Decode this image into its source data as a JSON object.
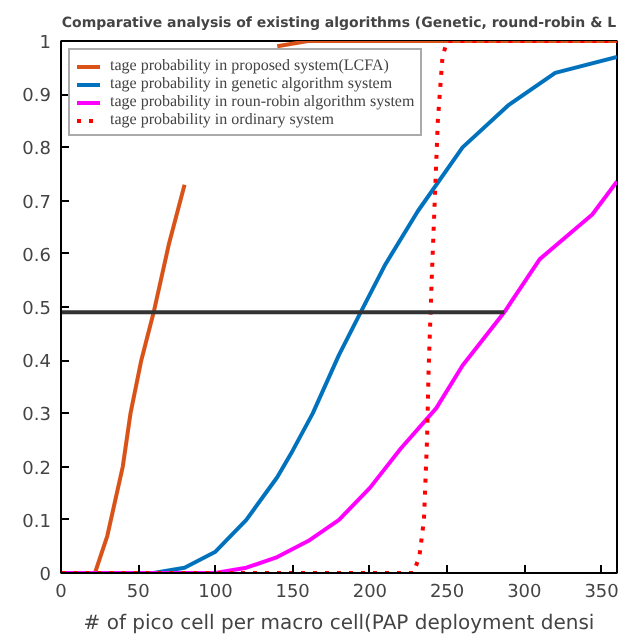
{
  "chart_data": {
    "type": "line",
    "title": "Comparative analysis of existing algorithms (Genetic, round-robin & L",
    "xlabel": "# of pico cell per macro cell(PAP deployment densi",
    "xlim": [
      0,
      360
    ],
    "xticks": [
      0,
      50,
      100,
      150,
      200,
      250,
      300,
      350
    ],
    "ylim": [
      0,
      1
    ],
    "yticks": [
      0,
      0.1,
      0.2,
      0.3,
      0.4,
      0.5,
      0.6,
      0.7,
      0.8,
      0.9,
      1
    ],
    "legend": "top left",
    "grid": false,
    "series": [
      {
        "name": "tage probability in proposed system(LCFA)",
        "color": "#d95319",
        "x": [
          0,
          22,
          30,
          40,
          45,
          52,
          60,
          70,
          80,
          90,
          100,
          110,
          120,
          140,
          160,
          360
        ],
        "values": [
          0,
          0,
          0.07,
          0.2,
          0.3,
          0.4,
          0.49,
          0.62,
          0.73,
          null,
          null,
          null,
          null,
          0.99,
          1,
          1
        ]
      },
      {
        "name": "tage probability in genetic algorithm system",
        "color": "#0072bd",
        "x": [
          0,
          60,
          80,
          100,
          120,
          140,
          150,
          163,
          180,
          194,
          210,
          231,
          260,
          290,
          320,
          360
        ],
        "values": [
          0,
          0,
          0.01,
          0.04,
          0.1,
          0.18,
          0.23,
          0.3,
          0.41,
          0.49,
          0.58,
          0.68,
          0.8,
          0.88,
          0.94,
          0.97
        ]
      },
      {
        "name": "tage probability in roun-robin algorithm system",
        "color": "#ff00ff",
        "x": [
          0,
          100,
          120,
          140,
          160,
          180,
          200,
          220,
          243,
          260,
          287,
          310,
          344,
          360
        ],
        "values": [
          0,
          0,
          0.01,
          0.03,
          0.06,
          0.1,
          0.16,
          0.234,
          0.31,
          0.39,
          0.49,
          0.59,
          0.674,
          0.736
        ]
      },
      {
        "name": "tage probability in ordinary system",
        "color": "#ff0000",
        "line_style": "dotted",
        "x": [
          0,
          228,
          232,
          235,
          237,
          238,
          240,
          242,
          244,
          247,
          250,
          360
        ],
        "values": [
          0,
          0,
          0.03,
          0.1,
          0.25,
          0.38,
          0.55,
          0.7,
          0.85,
          0.97,
          1,
          1
        ]
      },
      {
        "color": "#333333",
        "x": [
          0,
          287
        ],
        "values": [
          0.49,
          0.49
        ]
      }
    ]
  }
}
